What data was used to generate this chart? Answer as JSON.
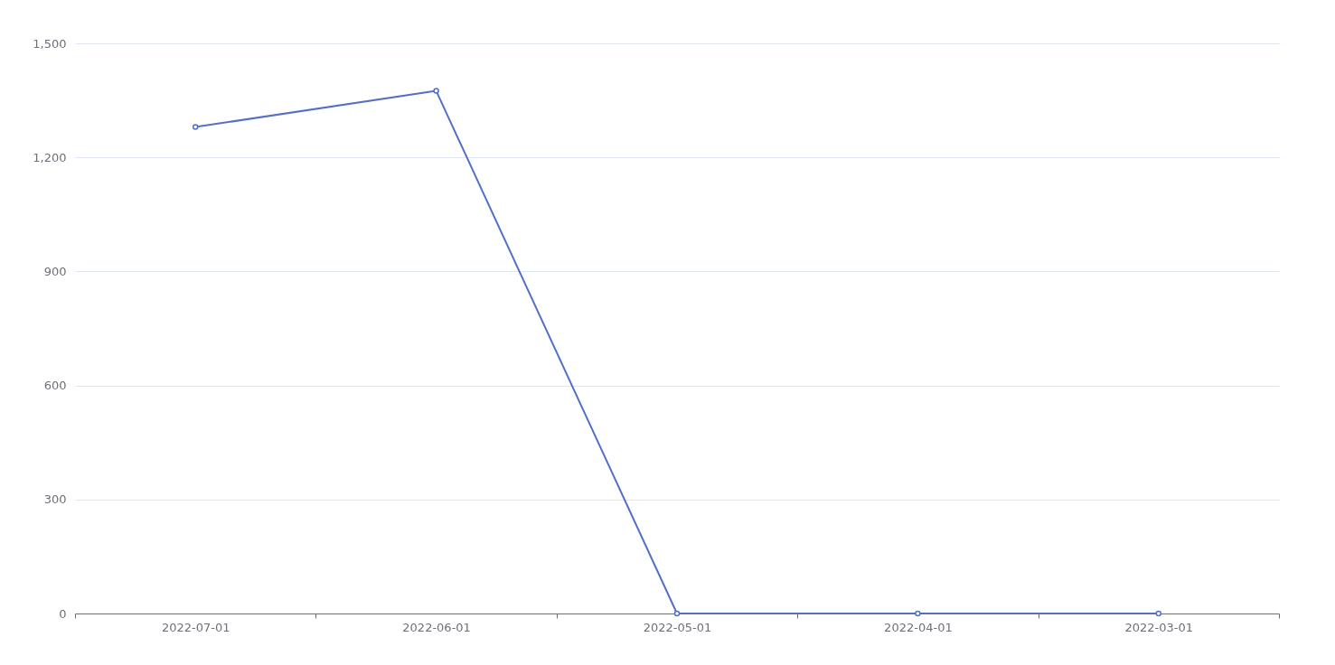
{
  "chart_data": {
    "type": "line",
    "categories": [
      "2022-07-01",
      "2022-06-01",
      "2022-05-01",
      "2022-04-01",
      "2022-03-01"
    ],
    "series": [
      {
        "color": "#5470c6",
        "values": [
          1280,
          1375,
          0,
          0,
          0
        ]
      }
    ],
    "ylim": [
      0,
      1500
    ],
    "yticks": [
      0,
      300,
      600,
      900,
      {
        "value": 1200,
        "label": "1,200"
      },
      {
        "value": 1500,
        "label": "1,500"
      }
    ],
    "grid": "y",
    "marker": "circle"
  }
}
